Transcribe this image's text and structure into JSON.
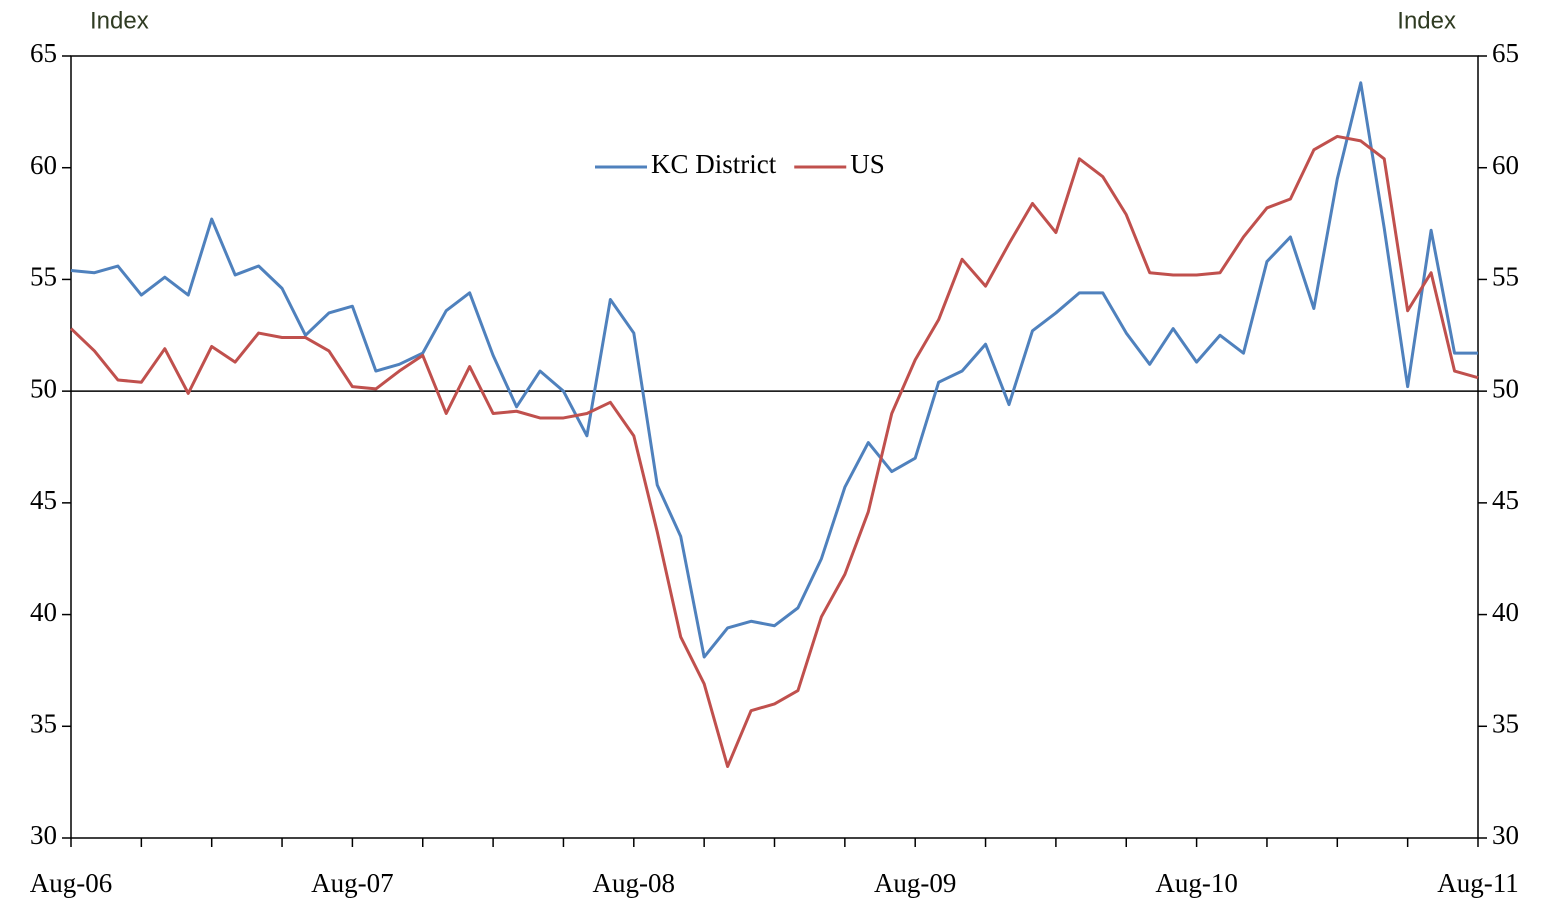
{
  "chart_data": {
    "type": "line",
    "y_label": "Index",
    "y2_label": "Index",
    "categories": [
      "Aug-06",
      null,
      null,
      null,
      null,
      null,
      null,
      null,
      null,
      null,
      null,
      null,
      "Aug-07",
      null,
      null,
      null,
      null,
      null,
      null,
      null,
      null,
      null,
      null,
      null,
      "Aug-08",
      null,
      null,
      null,
      null,
      null,
      null,
      null,
      null,
      null,
      null,
      null,
      "Aug-09",
      null,
      null,
      null,
      null,
      null,
      null,
      null,
      null,
      null,
      null,
      null,
      "Aug-10",
      null,
      null,
      null,
      null,
      null,
      null,
      null,
      null,
      null,
      null,
      null,
      "Aug-11"
    ],
    "series": [
      {
        "name": "KC District",
        "color": "#4f81bd",
        "values": [
          55.4,
          55.3,
          55.6,
          54.3,
          55.1,
          54.3,
          57.7,
          55.2,
          55.6,
          54.6,
          52.5,
          53.5,
          53.8,
          50.9,
          51.2,
          51.7,
          53.6,
          54.4,
          51.6,
          49.3,
          50.9,
          50.0,
          48.0,
          54.1,
          52.6,
          45.8,
          43.5,
          38.1,
          39.4,
          39.7,
          39.5,
          40.3,
          42.5,
          45.7,
          47.7,
          46.4,
          47.0,
          50.4,
          50.9,
          52.1,
          49.4,
          52.7,
          53.5,
          54.4,
          54.4,
          52.6,
          51.2,
          52.8,
          51.3,
          52.5,
          51.7,
          55.8,
          56.9,
          53.7,
          59.5,
          63.8,
          57.3,
          50.2,
          57.2,
          51.7,
          51.7
        ]
      },
      {
        "name": "US",
        "color": "#c0504d",
        "values": [
          52.8,
          51.8,
          50.5,
          50.4,
          51.9,
          49.9,
          52.0,
          51.3,
          52.6,
          52.4,
          52.4,
          51.8,
          50.2,
          50.1,
          50.9,
          51.6,
          49.0,
          51.1,
          49.0,
          49.1,
          48.8,
          48.8,
          49.0,
          49.5,
          48.0,
          43.7,
          39.0,
          36.9,
          33.2,
          35.7,
          36.0,
          36.6,
          39.9,
          41.8,
          44.6,
          49.0,
          51.4,
          53.2,
          55.9,
          54.7,
          56.6,
          58.4,
          57.1,
          60.4,
          59.6,
          57.9,
          55.3,
          55.2,
          55.2,
          55.3,
          56.9,
          58.2,
          58.6,
          60.8,
          61.4,
          61.2,
          60.4,
          53.6,
          55.3,
          50.9,
          50.6
        ]
      }
    ],
    "ylim": [
      30,
      65
    ],
    "yticks": [
      30,
      35,
      40,
      45,
      50,
      55,
      60,
      65
    ],
    "y2lim": [
      30,
      65
    ],
    "y2ticks": [
      30,
      35,
      40,
      45,
      50,
      55,
      60,
      65
    ],
    "reference_line": 50,
    "legend": "top"
  }
}
